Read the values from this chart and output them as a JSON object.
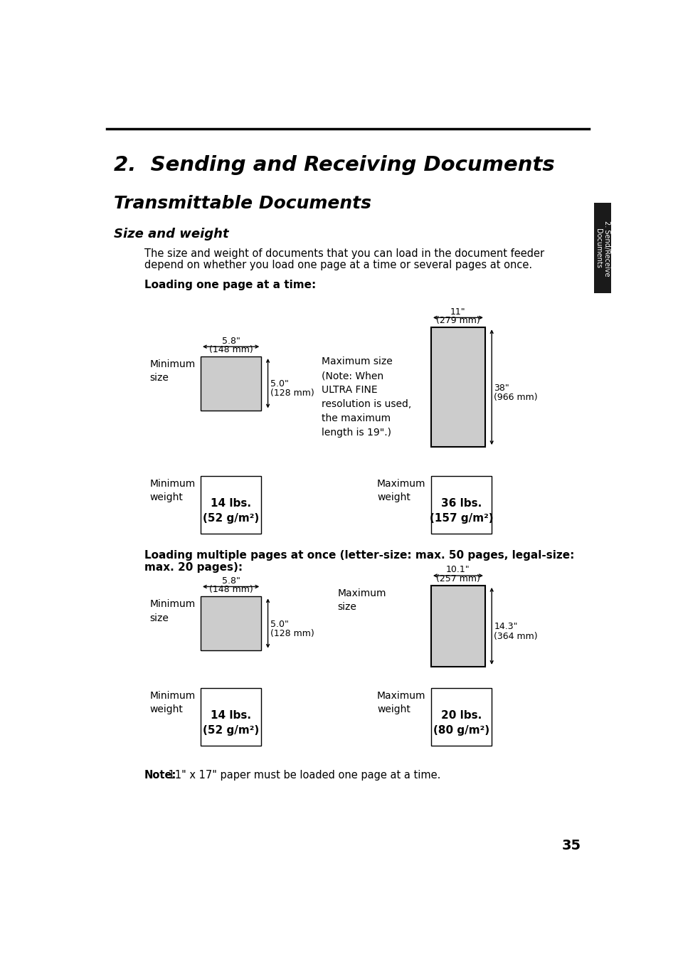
{
  "bg_color": "#ffffff",
  "page_number": "35",
  "chapter_title": "2.  Sending and Receiving Documents",
  "section_title": "Transmittable Documents",
  "subsection_title": "Size and weight",
  "body_line1": "The size and weight of documents that you can load in the document feeder",
  "body_line2": "depend on whether you load one page at a time or several pages at once.",
  "loading1_title": "Loading one page at a time:",
  "loading2_line1": "Loading multiple pages at once (letter-size: max. 50 pages, legal-size:",
  "loading2_line2": "max. 20 pages):",
  "note_bold": "Note:",
  "note_rest": " 11\" x 17\" paper must be loaded one page at a time.",
  "sidebar_text": "2. Send/Receive\nDocuments",
  "sidebar_bg": "#1a1a1a",
  "sidebar_text_color": "#ffffff",
  "gray_fill": "#cccccc",
  "white_fill": "#ffffff",
  "black": "#000000"
}
